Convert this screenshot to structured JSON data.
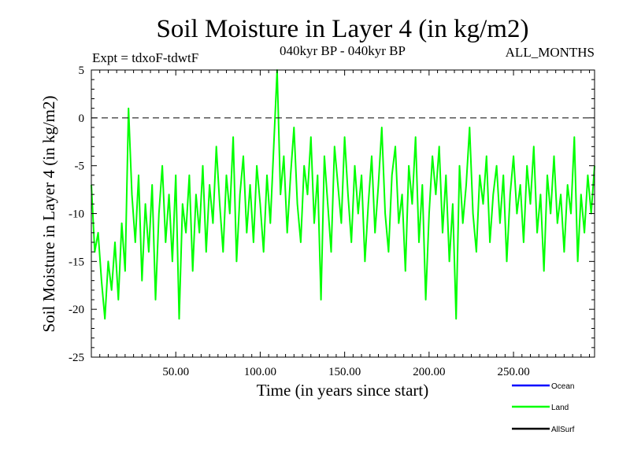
{
  "colors": {
    "ocean": "#0000ff",
    "land": "#00ff00",
    "allsurf": "#000000"
  },
  "chart_data": {
    "type": "line",
    "title": "Soil Moisture in Layer 4 (in kg/m2)",
    "subtitle_left": "Expt = tdxoF-tdwtF",
    "subtitle_center": "040kyr BP - 040kyr BP",
    "subtitle_right": "ALL_MONTHS",
    "xlabel": "Time (in years since start)",
    "ylabel": "Soil Moisture in Layer 4 (in kg/m2)",
    "xlim": [
      0,
      298
    ],
    "ylim": [
      -25,
      5
    ],
    "x_ticks": [
      50,
      100,
      150,
      200,
      250
    ],
    "x_tick_labels": [
      "50.00",
      "100.00",
      "150.00",
      "200.00",
      "250.00"
    ],
    "y_ticks": [
      5,
      0,
      -5,
      -10,
      -15,
      -20,
      -25
    ],
    "y_tick_labels": [
      "5",
      "0",
      "-5",
      "-10",
      "-15",
      "-20",
      "-25"
    ],
    "reference_line": 0,
    "legend": [
      "Ocean",
      "Land",
      "AllSurf"
    ],
    "series": [
      {
        "name": "Land",
        "color": "#00ff00",
        "x": [
          0,
          2,
          4,
          6,
          8,
          10,
          12,
          14,
          16,
          18,
          20,
          22,
          24,
          26,
          28,
          30,
          32,
          34,
          36,
          38,
          40,
          42,
          44,
          46,
          48,
          50,
          52,
          54,
          56,
          58,
          60,
          62,
          64,
          66,
          68,
          70,
          72,
          74,
          76,
          78,
          80,
          82,
          84,
          86,
          88,
          90,
          92,
          94,
          96,
          98,
          100,
          102,
          104,
          106,
          108,
          110,
          112,
          114,
          116,
          118,
          120,
          122,
          124,
          126,
          128,
          130,
          132,
          134,
          136,
          138,
          140,
          142,
          144,
          146,
          148,
          150,
          152,
          154,
          156,
          158,
          160,
          162,
          164,
          166,
          168,
          170,
          172,
          174,
          176,
          178,
          180,
          182,
          184,
          186,
          188,
          190,
          192,
          194,
          196,
          198,
          200,
          202,
          204,
          206,
          208,
          210,
          212,
          214,
          216,
          218,
          220,
          222,
          224,
          226,
          228,
          230,
          232,
          234,
          236,
          238,
          240,
          242,
          244,
          246,
          248,
          250,
          252,
          254,
          256,
          258,
          260,
          262,
          264,
          266,
          268,
          270,
          272,
          274,
          276,
          278,
          280,
          282,
          284,
          286,
          288,
          290,
          292,
          294,
          296,
          298
        ],
        "values": [
          -7,
          -14,
          -12,
          -17,
          -21,
          -15,
          -18,
          -13,
          -19,
          -11,
          -16,
          1,
          -8,
          -13,
          -6,
          -17,
          -9,
          -14,
          -7,
          -19,
          -10,
          -5,
          -13,
          -8,
          -15,
          -6,
          -21,
          -9,
          -12,
          -6,
          -16,
          -8,
          -12,
          -5,
          -14,
          -7,
          -11,
          -3,
          -9,
          -14,
          -6,
          -10,
          -2,
          -15,
          -8,
          -4,
          -12,
          -7,
          -13,
          -5,
          -9,
          -14,
          -6,
          -11,
          -3,
          5,
          -8,
          -4,
          -12,
          -6,
          -1,
          -9,
          -13,
          -5,
          -8,
          -2,
          -11,
          -6,
          -19,
          -4,
          -9,
          -14,
          -3,
          -7,
          -11,
          -2,
          -8,
          -13,
          -5,
          -10,
          -6,
          -15,
          -9,
          -4,
          -12,
          -7,
          -1,
          -10,
          -14,
          -6,
          -3,
          -11,
          -8,
          -16,
          -5,
          -9,
          -2,
          -13,
          -7,
          -19,
          -10,
          -4,
          -8,
          -3,
          -12,
          -6,
          -15,
          -9,
          -21,
          -5,
          -11,
          -7,
          -1,
          -10,
          -14,
          -6,
          -9,
          -4,
          -13,
          -8,
          -5,
          -11,
          -6,
          -15,
          -8,
          -4,
          -10,
          -7,
          -13,
          -5,
          -9,
          -3,
          -12,
          -8,
          -16,
          -6,
          -10,
          -4,
          -11,
          -8,
          -14,
          -7,
          -10,
          -2,
          -15,
          -8,
          -12,
          -6,
          -10,
          -5
        ]
      }
    ]
  }
}
